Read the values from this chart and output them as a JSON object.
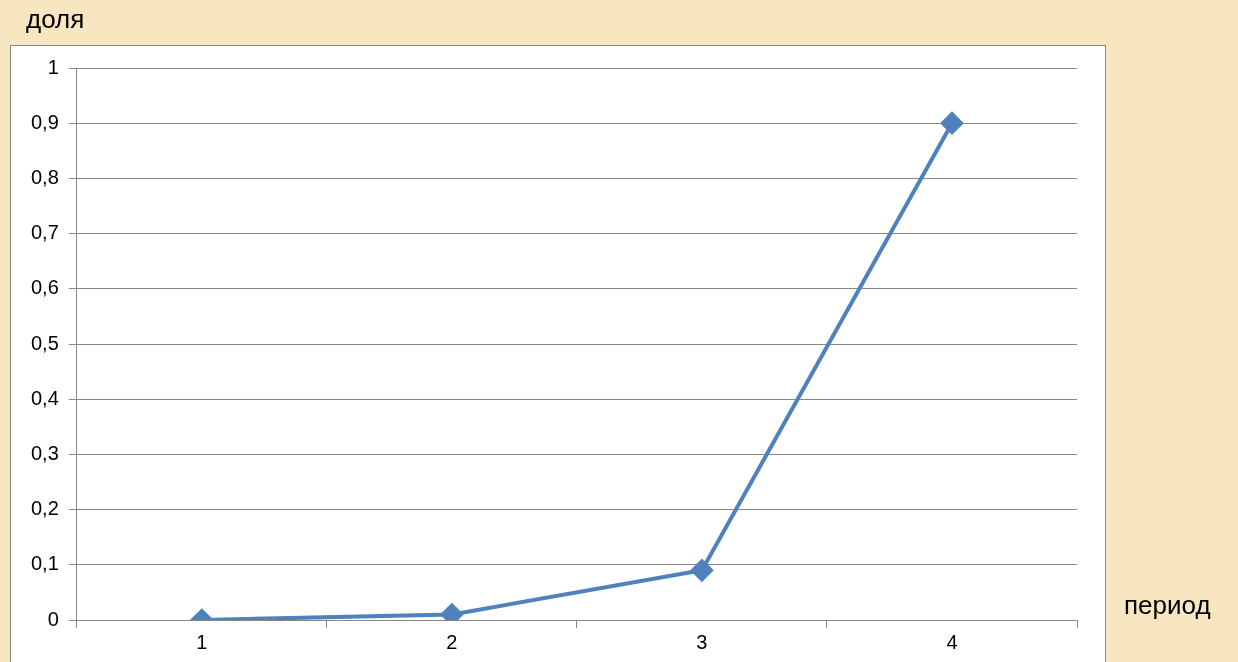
{
  "chart_data": {
    "type": "line",
    "ylabel": "доля",
    "xlabel": "период",
    "categories": [
      "1",
      "2",
      "3",
      "4"
    ],
    "series": [
      {
        "color": "#4f81bd",
        "values": [
          0,
          0.01,
          0.09,
          0.9
        ]
      }
    ],
    "ylim": [
      0,
      1
    ],
    "yticks": [
      0,
      {
        "value": 0.1,
        "label": "0,1"
      },
      {
        "value": 0.2,
        "label": "0,2"
      },
      {
        "value": 0.3,
        "label": "0,3"
      },
      {
        "value": 0.4,
        "label": "0,4"
      },
      {
        "value": 0.5,
        "label": "0,5"
      },
      {
        "value": 0.6,
        "label": "0,6"
      },
      {
        "value": 0.7,
        "label": "0,7"
      },
      {
        "value": 0.8,
        "label": "0,8"
      },
      {
        "value": 0.9,
        "label": "0,9"
      },
      1
    ],
    "grid": "y",
    "legend": false,
    "marker": "diamond",
    "line_style": "solid"
  }
}
